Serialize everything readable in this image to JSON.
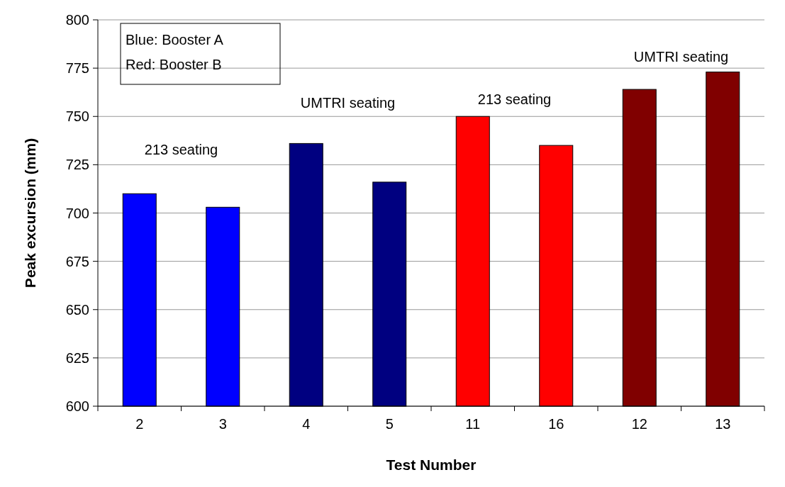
{
  "chart_data": {
    "type": "bar",
    "xlabel": "Test Number",
    "ylabel": "Peak excursion (mm)",
    "categories": [
      "2",
      "3",
      "4",
      "5",
      "11",
      "16",
      "12",
      "13"
    ],
    "values": [
      710,
      703,
      736,
      716,
      750,
      735,
      764,
      773
    ],
    "colors": [
      "#0000ff",
      "#0000ff",
      "#000080",
      "#000080",
      "#ff0000",
      "#ff0000",
      "#800000",
      "#800000"
    ],
    "ylim": [
      600,
      800
    ],
    "yticks": [
      600,
      625,
      650,
      675,
      700,
      725,
      750,
      775,
      800
    ],
    "grid": "y",
    "annotations": [
      "213 seating",
      "UMTRI seating",
      "213 seating",
      "UMTRI seating",
      "Blue: Booster A\nRed: Booster B"
    ]
  }
}
